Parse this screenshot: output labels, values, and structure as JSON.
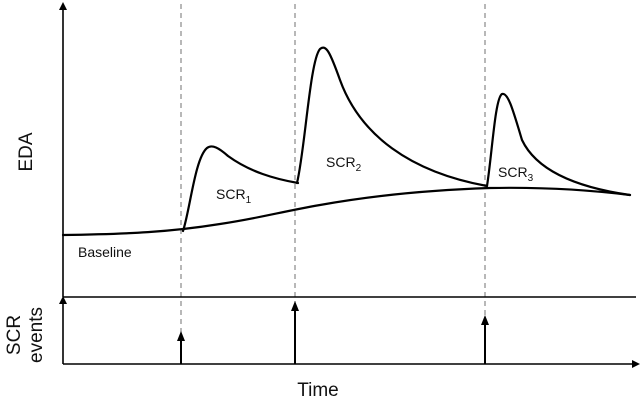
{
  "axes": {
    "y_top_label": "EDA",
    "y_bottom_label_line1": "SCR",
    "y_bottom_label_line2": "events",
    "x_label": "Time"
  },
  "labels": {
    "baseline": "Baseline",
    "scr1": {
      "base": "SCR",
      "sub": "1"
    },
    "scr2": {
      "base": "SCR",
      "sub": "2"
    },
    "scr3": {
      "base": "SCR",
      "sub": "3"
    }
  }
}
